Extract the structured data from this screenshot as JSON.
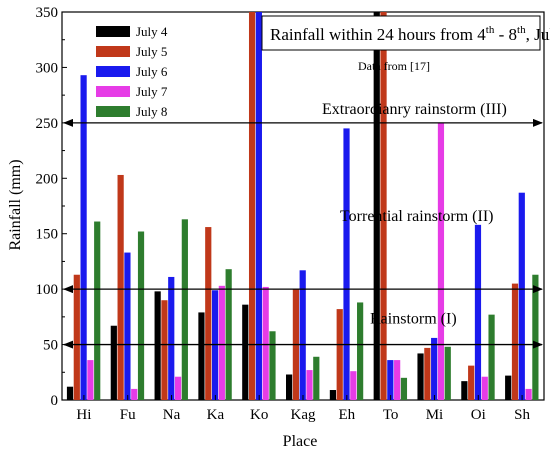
{
  "chart_data": {
    "type": "bar",
    "title_main": "Rainfall within 24 hours from 4",
    "title_sup1": "th",
    "title_mid": " - 8",
    "title_sup2": "th",
    "title_end": ", July",
    "source_note": "Data from   [17]",
    "xlabel": "Place",
    "ylabel": "Rainfall (mm)",
    "ylim": [
      0,
      350
    ],
    "yticks": [
      0,
      50,
      100,
      150,
      200,
      250,
      300,
      350
    ],
    "categories": [
      "Hi",
      "Fu",
      "Na",
      "Ka",
      "Ko",
      "Kag",
      "Eh",
      "To",
      "Mi",
      "Oi",
      "Sh"
    ],
    "legend_position": "top-left",
    "series": [
      {
        "name": "July 4",
        "color": "#000000",
        "values": [
          12,
          67,
          98,
          79,
          86,
          23,
          9,
          350,
          42,
          17,
          22
        ]
      },
      {
        "name": "July 5",
        "color": "#c0381a",
        "values": [
          113,
          203,
          90,
          156,
          350,
          100,
          82,
          350,
          47,
          31,
          105
        ]
      },
      {
        "name": "July 6",
        "color": "#1a1aee",
        "values": [
          293,
          133,
          111,
          99,
          350,
          117,
          245,
          36,
          56,
          158,
          187
        ]
      },
      {
        "name": "July 7",
        "color": "#e63ce6",
        "values": [
          36,
          10,
          21,
          103,
          102,
          27,
          26,
          36,
          250,
          21,
          10
        ]
      },
      {
        "name": "July 8",
        "color": "#2e7d2e",
        "values": [
          161,
          152,
          163,
          118,
          62,
          39,
          88,
          20,
          48,
          77,
          113
        ]
      }
    ],
    "reference_lines": [
      {
        "value": 250,
        "label": "Extraordianry rainstorm (III)"
      },
      {
        "value": 100,
        "label": "Torrential rainstorm (II)"
      },
      {
        "value": 50,
        "label": "Rainstorm (I)"
      }
    ]
  }
}
